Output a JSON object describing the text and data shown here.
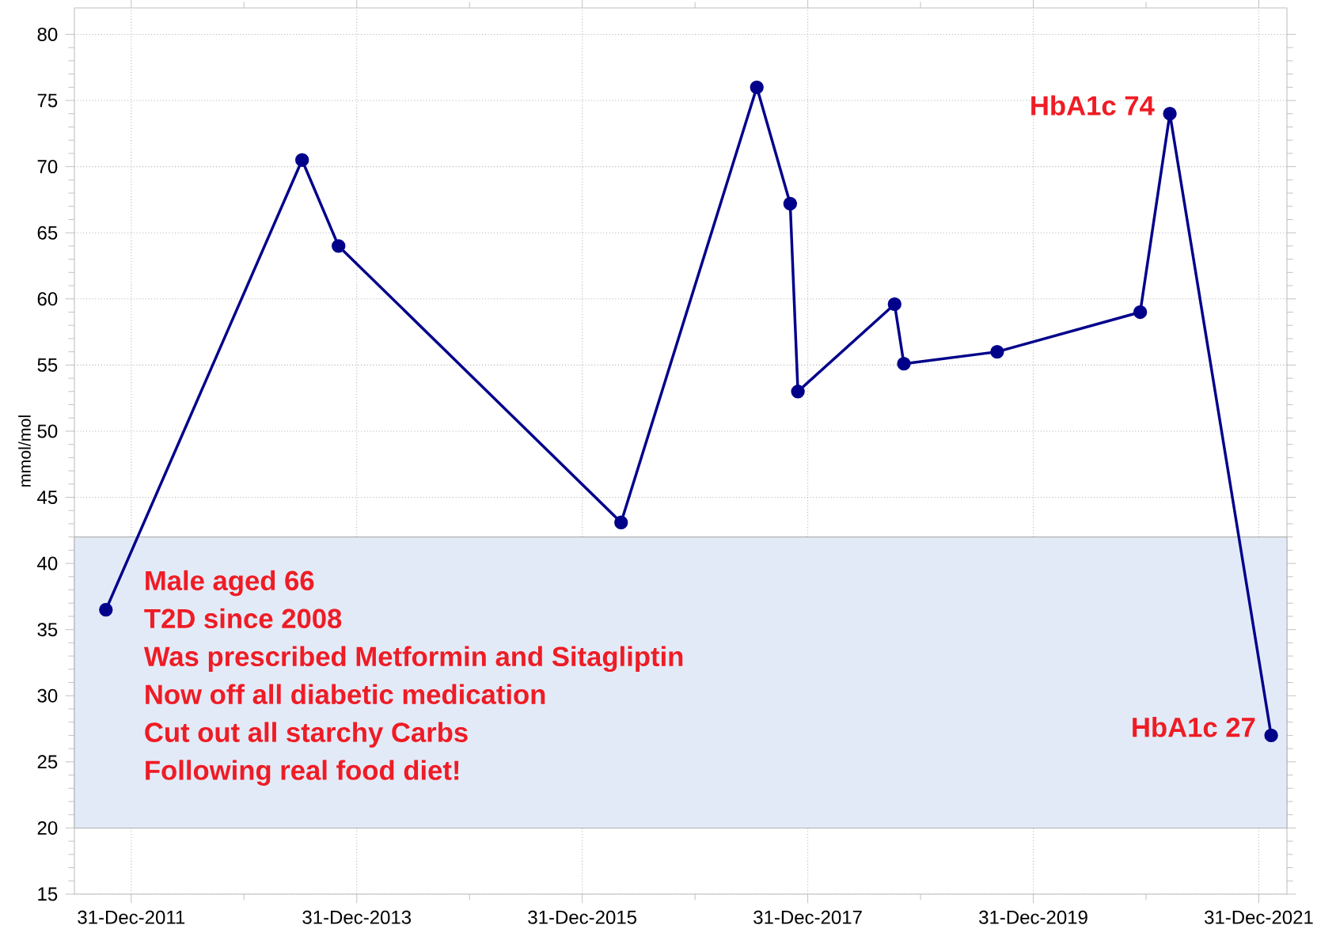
{
  "chart_data": {
    "type": "line",
    "ylabel": "mmol/mol",
    "x": [
      "2011-10-10",
      "2013-07-07",
      "2013-11-02",
      "2016-05-05",
      "2017-07-19",
      "2017-11-04",
      "2017-11-29",
      "2018-10-08",
      "2018-11-07",
      "2019-09-05",
      "2020-12-12",
      "2021-03-18",
      "2022-02-09"
    ],
    "series": [
      {
        "color": "#00008b",
        "values": [
          36.5,
          70.5,
          64,
          43.1,
          76,
          67.2,
          53,
          59.6,
          55.1,
          56,
          59,
          74,
          27
        ]
      }
    ],
    "xlim": [
      "2011-06-30",
      "2022-04-01"
    ],
    "xticks": [
      {
        "value": "2011-12-31",
        "label": "31-Dec-2011"
      },
      {
        "value": "2013-12-31",
        "label": "31-Dec-2013"
      },
      {
        "value": "2015-12-31",
        "label": "31-Dec-2015"
      },
      {
        "value": "2017-12-31",
        "label": "31-Dec-2017"
      },
      {
        "value": "2019-12-31",
        "label": "31-Dec-2019"
      },
      {
        "value": "2021-12-31",
        "label": "31-Dec-2021"
      }
    ],
    "ylim": [
      15,
      82
    ],
    "yticks": [
      15,
      20,
      25,
      30,
      35,
      40,
      45,
      50,
      55,
      60,
      65,
      70,
      75,
      80
    ],
    "bands": [
      {
        "axis": "y",
        "from": 20,
        "to": 42,
        "color": "#e3eaf7"
      }
    ],
    "annotations": [
      {
        "text": "HbA1c 74",
        "x": "2021-03-18",
        "y": 74
      },
      {
        "text": "HbA1c 27",
        "x": "2022-02-09",
        "y": 27
      },
      "Male aged 66",
      "T2D since 2008",
      "Was prescribed Metformin and Sitagliptin",
      "Now off all diabetic medication",
      "Cut out all starchy Carbs",
      "Following real food diet!"
    ],
    "grid": true,
    "marker": "circle",
    "line_style": "solid"
  }
}
